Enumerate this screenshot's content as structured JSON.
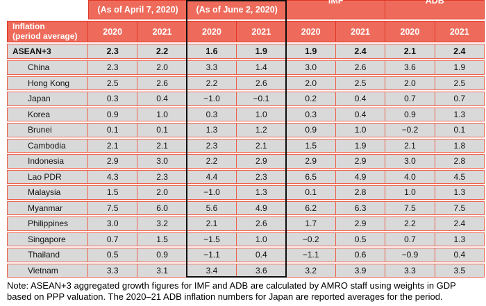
{
  "header": {
    "corner": {
      "line1": "Inflation",
      "line2": "(period average)"
    },
    "groups": [
      {
        "label": "(As of April 7, 2020)"
      },
      {
        "label": "(As of June 2, 2020)"
      },
      {
        "label": "IMF"
      },
      {
        "label": "ADB"
      }
    ],
    "years": [
      "2020",
      "2021",
      "2020",
      "2021",
      "2020",
      "2021",
      "2020",
      "2021"
    ]
  },
  "note": "Note: ASEAN+3 aggregated growth figures for IMF and ADB are calculated by AMRO staff using weights in GDP based on PPP valuation. The 2020–21 ADB inflation numbers for Japan are reported averages for the period.",
  "colors": {
    "header_fill": "#ee6b5b",
    "header_grid": "#de3726",
    "body_grid": "#ee604b",
    "row_fill": "#d9d9d9",
    "highlight_border": "#0d0d0d"
  },
  "chart_data": {
    "type": "table",
    "title": "Inflation (period average)",
    "column_groups": [
      "(As of April 7, 2020)",
      "(As of June 2, 2020)",
      "IMF",
      "ADB"
    ],
    "years_per_group": [
      "2020",
      "2021"
    ],
    "highlighted_group": "(As of June 2, 2020)",
    "rows": [
      {
        "label": "ASEAN+3",
        "bold": true,
        "values": [
          "2.3",
          "2.2",
          "1.6",
          "1.9",
          "1.9",
          "2.4",
          "2.1",
          "2.4"
        ]
      },
      {
        "label": "China",
        "bold": false,
        "values": [
          "2.3",
          "2.0",
          "3.3",
          "1.4",
          "3.0",
          "2.6",
          "3.6",
          "1.9"
        ]
      },
      {
        "label": "Hong Kong",
        "bold": false,
        "values": [
          "2.5",
          "2.6",
          "2.2",
          "2.6",
          "2.0",
          "2.5",
          "2.0",
          "2.5"
        ]
      },
      {
        "label": "Japan",
        "bold": false,
        "values": [
          "0.3",
          "0.4",
          "−1.0",
          "−0.1",
          "0.2",
          "0.4",
          "0.7",
          "0.7"
        ]
      },
      {
        "label": "Korea",
        "bold": false,
        "values": [
          "0.9",
          "1.0",
          "0.3",
          "1.0",
          "0.3",
          "0.4",
          "0.9",
          "1.3"
        ]
      },
      {
        "label": "Brunei",
        "bold": false,
        "values": [
          "0.1",
          "0.1",
          "1.3",
          "1.2",
          "0.9",
          "1.0",
          "−0.2",
          "0.1"
        ]
      },
      {
        "label": "Cambodia",
        "bold": false,
        "values": [
          "2.1",
          "2.1",
          "2.3",
          "2.1",
          "1.5",
          "1.9",
          "2.1",
          "1.8"
        ]
      },
      {
        "label": "Indonesia",
        "bold": false,
        "values": [
          "2.9",
          "3.0",
          "2.2",
          "2.9",
          "2.9",
          "2.9",
          "3.0",
          "2.8"
        ]
      },
      {
        "label": "Lao PDR",
        "bold": false,
        "values": [
          "4.3",
          "2.3",
          "4.4",
          "2.3",
          "6.5",
          "4.9",
          "4.0",
          "4.5"
        ]
      },
      {
        "label": "Malaysia",
        "bold": false,
        "values": [
          "1.5",
          "2.0",
          "−1.0",
          "1.3",
          "0.1",
          "2.8",
          "1.0",
          "1.3"
        ]
      },
      {
        "label": "Myanmar",
        "bold": false,
        "values": [
          "7.5",
          "6.0",
          "5.6",
          "4.9",
          "6.2",
          "6.3",
          "7.5",
          "7.5"
        ]
      },
      {
        "label": "Philippines",
        "bold": false,
        "values": [
          "3.0",
          "3.2",
          "2.1",
          "2.6",
          "1.7",
          "2.9",
          "2.2",
          "2.4"
        ]
      },
      {
        "label": "Singapore",
        "bold": false,
        "values": [
          "0.7",
          "1.5",
          "−1.5",
          "1.0",
          "−0.2",
          "0.5",
          "0.7",
          "1.3"
        ]
      },
      {
        "label": "Thailand",
        "bold": false,
        "values": [
          "0.5",
          "0.9",
          "−1.1",
          "0.4",
          "−1.1",
          "0.6",
          "−0.9",
          "0.4"
        ]
      },
      {
        "label": "Vietnam",
        "bold": false,
        "values": [
          "3.3",
          "3.1",
          "3.4",
          "3.6",
          "3.2",
          "3.9",
          "3.3",
          "3.5"
        ]
      }
    ]
  }
}
